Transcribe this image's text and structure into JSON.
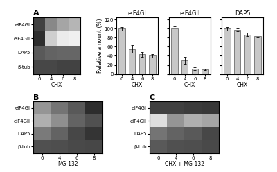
{
  "chart_data": [
    {
      "type": "heatmap",
      "title": "A",
      "xlabel": "CHX",
      "categories": [
        "0",
        "4",
        "6",
        "8"
      ],
      "rows": [
        "eIF4GI",
        "eIF4GII",
        "DAP5",
        "β-tub"
      ],
      "cells": [
        [
          0.8,
          0.55,
          0.45,
          0.4
        ],
        [
          0.85,
          0.3,
          0.15,
          0.12
        ],
        [
          0.72,
          0.68,
          0.67,
          0.67
        ],
        [
          0.78,
          0.78,
          0.79,
          0.79
        ]
      ],
      "clim": [
        0,
        1
      ]
    },
    {
      "type": "bar",
      "title": "eIF4GI",
      "xlabel": "CHX",
      "ylabel": "Relative amount (%)",
      "categories": [
        "0",
        "4",
        "6",
        "8"
      ],
      "values": [
        100,
        55,
        43,
        40
      ],
      "errors": [
        4,
        8,
        5,
        4
      ],
      "color": "#c8c8c8",
      "edge_color": "#555555",
      "ylim": [
        0,
        125
      ],
      "yticks": [
        0,
        20,
        40,
        60,
        80,
        100,
        120
      ]
    },
    {
      "type": "bar",
      "title": "eIF4GII",
      "xlabel": "CHX",
      "categories": [
        "0",
        "4",
        "6",
        "8"
      ],
      "values": [
        100,
        30,
        12,
        10
      ],
      "errors": [
        5,
        7,
        3,
        2
      ],
      "color": "#c8c8c8",
      "edge_color": "#555555",
      "ylim": [
        0,
        125
      ],
      "yticks": [
        0,
        20,
        40,
        60,
        80,
        100,
        120
      ],
      "tick_labels": "x"
    },
    {
      "type": "bar",
      "title": "DAP5",
      "xlabel": "CHX",
      "categories": [
        "0",
        "4",
        "6",
        "8"
      ],
      "values": [
        100,
        97,
        87,
        83
      ],
      "errors": [
        4,
        3,
        4,
        3
      ],
      "color": "#c8c8c8",
      "edge_color": "#555555",
      "ylim": [
        0,
        125
      ],
      "yticks": [
        0,
        20,
        40,
        60,
        80,
        100,
        120
      ],
      "tick_labels": "x"
    },
    {
      "type": "heatmap",
      "title": "B",
      "xlabel": "MG-132",
      "categories": [
        "0",
        "4",
        "6",
        "8"
      ],
      "rows": [
        "eIF4GI",
        "eIF4GII",
        "DAP5",
        "β-tub"
      ],
      "cells": [
        [
          0.5,
          0.62,
          0.72,
          0.85
        ],
        [
          0.42,
          0.52,
          0.68,
          0.75
        ],
        [
          0.6,
          0.68,
          0.78,
          0.83
        ],
        [
          0.75,
          0.76,
          0.77,
          0.78
        ]
      ],
      "clim": [
        0,
        1
      ]
    },
    {
      "type": "heatmap",
      "title": "C",
      "xlabel": "CHX + MG-132",
      "categories": [
        "0",
        "4",
        "6",
        "8"
      ],
      "rows": [
        "eIF4GI",
        "eIF4GII",
        "DAP5",
        "β-tub"
      ],
      "cells": [
        [
          0.8,
          0.8,
          0.81,
          0.82
        ],
        [
          0.22,
          0.5,
          0.42,
          0.45
        ],
        [
          0.62,
          0.68,
          0.72,
          0.78
        ],
        [
          0.72,
          0.75,
          0.76,
          0.77
        ]
      ],
      "clim": [
        0,
        1
      ]
    }
  ]
}
